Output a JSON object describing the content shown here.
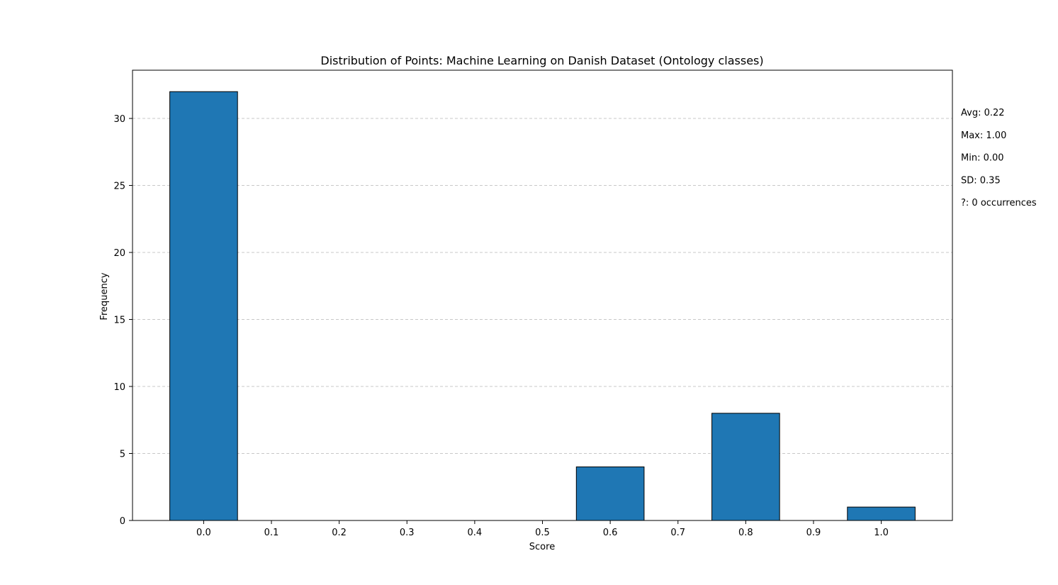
{
  "chart_data": {
    "type": "bar",
    "title": "Distribution of Points: Machine Learning on Danish Dataset (Ontology classes)",
    "xlabel": "Score",
    "ylabel": "Frequency",
    "x": [
      0.0,
      0.6,
      0.8,
      1.0
    ],
    "values": [
      32,
      4,
      8,
      1
    ],
    "bar_width": 0.1,
    "xlim": [
      -0.105,
      1.105
    ],
    "ylim": [
      0,
      33.6
    ],
    "xticks": [
      0.0,
      0.1,
      0.2,
      0.3,
      0.4,
      0.5,
      0.6,
      0.7,
      0.8,
      0.9,
      1.0
    ],
    "xtick_labels": [
      "0.0",
      "0.1",
      "0.2",
      "0.3",
      "0.4",
      "0.5",
      "0.6",
      "0.7",
      "0.8",
      "0.9",
      "1.0"
    ],
    "yticks": [
      0,
      5,
      10,
      15,
      20,
      25,
      30
    ],
    "ytick_labels": [
      "0",
      "5",
      "10",
      "15",
      "20",
      "25",
      "30"
    ],
    "grid": "y-dashed",
    "bar_color": "#1f77b4",
    "edge_color": "#000000",
    "grid_color": "#c8c8c8",
    "stats": [
      "Avg: 0.22",
      "Max: 1.00",
      "Min: 0.00",
      "SD: 0.35",
      "?: 0 occurrences"
    ]
  }
}
